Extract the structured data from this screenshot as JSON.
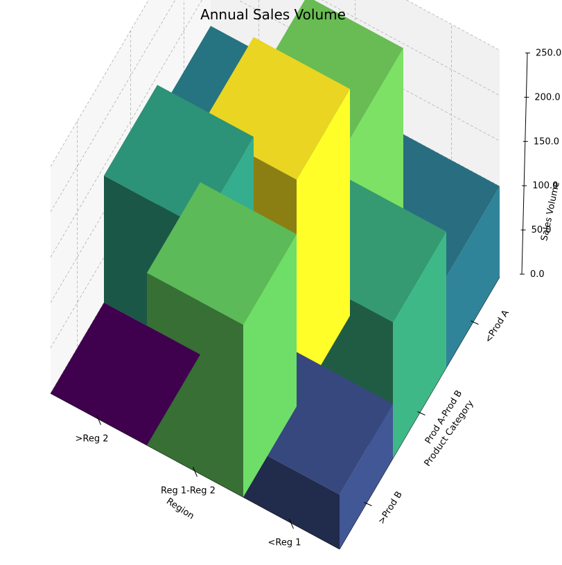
{
  "chart_data": {
    "type": "bar3d",
    "title": "Annual Sales Volume",
    "xlabel": "Region",
    "ylabel": "Product Category",
    "zlabel": "Sales Volume",
    "regions": [
      ">Reg 2",
      "Reg 1-Reg 2",
      "<Reg 1"
    ],
    "products": [
      ">Prod B",
      "Prod A-Prod B",
      "<Prod A"
    ],
    "z_ticks": [
      "0.0",
      "50.0",
      "100.0",
      "150.0",
      "200.0",
      "250.0"
    ],
    "zlim": [
      0,
      250
    ],
    "grid": true,
    "colormap": "viridis",
    "bars": [
      {
        "region": ">Reg 2",
        "product": ">Prod B",
        "value": 0
      },
      {
        "region": ">Reg 2",
        "product": "Prod A-Prod B",
        "value": 140
      },
      {
        "region": ">Reg 2",
        "product": "<Prod A",
        "value": 105
      },
      {
        "region": "Reg 1-Reg 2",
        "product": ">Prod B",
        "value": 190
      },
      {
        "region": "Reg 1-Reg 2",
        "product": "Prod A-Prod B",
        "value": 250
      },
      {
        "region": "Reg 1-Reg 2",
        "product": "<Prod A",
        "value": 195
      },
      {
        "region": "<Reg 1",
        "product": ">Prod B",
        "value": 60
      },
      {
        "region": "<Reg 1",
        "product": "Prod A-Prod B",
        "value": 150
      },
      {
        "region": "<Reg 1",
        "product": "<Prod A",
        "value": 100
      }
    ]
  }
}
